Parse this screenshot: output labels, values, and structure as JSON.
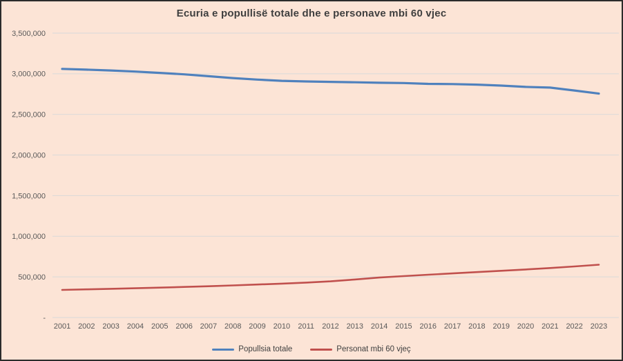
{
  "window": {
    "background": "#FCE4D6",
    "border_color": "#2B2B2B"
  },
  "chart_data": {
    "type": "line",
    "title": "Ecuria e popullisë totale dhe e personave mbi 60 vjec",
    "xlabel": "",
    "ylabel": "",
    "categories": [
      "2001",
      "2002",
      "2003",
      "2004",
      "2005",
      "2006",
      "2007",
      "2008",
      "2009",
      "2010",
      "2011",
      "2012",
      "2013",
      "2014",
      "2015",
      "2016",
      "2017",
      "2018",
      "2019",
      "2020",
      "2021",
      "2022",
      "2023"
    ],
    "series": [
      {
        "name": "Popullsia totale",
        "color": "#4F81BD",
        "stroke_width": 3.2,
        "values": [
          3060000,
          3051000,
          3040000,
          3027000,
          3011000,
          2993000,
          2970000,
          2947000,
          2928000,
          2913000,
          2905000,
          2900000,
          2895000,
          2889000,
          2886000,
          2876000,
          2873000,
          2866000,
          2854000,
          2838000,
          2830000,
          2794000,
          2756000
        ]
      },
      {
        "name": "Personat mbi 60 vjeç",
        "color": "#C0504D",
        "stroke_width": 2.6,
        "values": [
          340000,
          347000,
          353000,
          360000,
          368000,
          376000,
          385000,
          395000,
          406000,
          417000,
          430000,
          445000,
          468000,
          492000,
          510000,
          527000,
          543000,
          559000,
          575000,
          591000,
          609000,
          629000,
          650000
        ]
      }
    ],
    "ylim": [
      0,
      3500000
    ],
    "ytick_interval": 500000,
    "yticks": [
      {
        "value": 3500000,
        "label": "3,500,000"
      },
      {
        "value": 3000000,
        "label": "3,000,000"
      },
      {
        "value": 2500000,
        "label": "2,500,000"
      },
      {
        "value": 2000000,
        "label": "2,000,000"
      },
      {
        "value": 1500000,
        "label": "1,500,000"
      },
      {
        "value": 1000000,
        "label": "1,000,000"
      },
      {
        "value": 500000,
        "label": "500,000"
      },
      {
        "value": 0,
        "label": "-"
      }
    ],
    "grid": true,
    "legend_position": "bottom",
    "colors": {
      "gridline": "#D9D9D9",
      "axis_text": "#595959",
      "title_text": "#3F3F3F"
    }
  }
}
